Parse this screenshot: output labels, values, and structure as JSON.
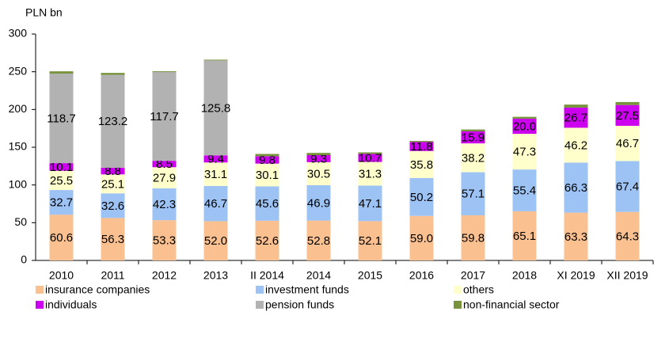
{
  "chart_data": {
    "type": "stacked_bar",
    "y_label": "PLN bn",
    "categories": [
      "2010",
      "2011",
      "2012",
      "2013",
      "II 2014",
      "2014",
      "2015",
      "2016",
      "2017",
      "2018",
      "XI 2019",
      "XII 2019"
    ],
    "ylim": [
      0,
      300
    ],
    "yticks": [
      0,
      50,
      100,
      150,
      200,
      250,
      300
    ],
    "grid": false,
    "legend": "bottom",
    "series": [
      {
        "name": "insurance companies",
        "color": "#fac090",
        "values": [
          60.6,
          56.3,
          53.3,
          52.0,
          52.6,
          52.8,
          52.1,
          59.0,
          59.8,
          65.1,
          63.3,
          64.3
        ],
        "value_labels": [
          "60.6",
          "56.3",
          "53.3",
          "52.0",
          "52.6",
          "52.8",
          "52.1",
          "59.0",
          "59.8",
          "65.1",
          "63.3",
          "64.3"
        ]
      },
      {
        "name": "investment funds",
        "color": "#9dc3f5",
        "values": [
          32.7,
          32.6,
          42.3,
          46.7,
          45.6,
          46.9,
          47.1,
          50.2,
          57.1,
          55.4,
          66.3,
          67.4
        ],
        "value_labels": [
          "32.7",
          "32.6",
          "42.3",
          "46.7",
          "45.6",
          "46.9",
          "47.1",
          "50.2",
          "57.1",
          "55.4",
          "66.3",
          "67.4"
        ]
      },
      {
        "name": "others",
        "color": "#ffffcc",
        "values": [
          25.5,
          25.1,
          27.9,
          31.1,
          30.1,
          30.5,
          31.3,
          35.8,
          38.2,
          47.3,
          46.2,
          46.7
        ],
        "value_labels": [
          "25.5",
          "25.1",
          "27.9",
          "31.1",
          "30.1",
          "30.5",
          "31.3",
          "35.8",
          "38.2",
          "47.3",
          "46.2",
          "46.7"
        ]
      },
      {
        "name": "individuals",
        "color": "#cc00ee",
        "values": [
          10.1,
          8.8,
          8.5,
          9.4,
          9.8,
          9.3,
          10.7,
          11.8,
          15.9,
          20.0,
          26.7,
          27.5
        ],
        "value_labels": [
          "10.1",
          "8.8",
          "8.5",
          "9.4",
          "9.8",
          "9.3",
          "10.7",
          "11.8",
          "15.9",
          "20.0",
          "26.7",
          "27.5"
        ]
      },
      {
        "name": "pension funds",
        "color": "#b2b2b2",
        "values": [
          118.7,
          123.2,
          117.7,
          125.8,
          null,
          null,
          null,
          null,
          null,
          null,
          null,
          null
        ],
        "value_labels": [
          "118.7",
          "123.2",
          "117.7",
          "125.8",
          null,
          null,
          null,
          null,
          null,
          null,
          null,
          null
        ]
      },
      {
        "name": "non-financial sector",
        "color": "#77933c",
        "values": [
          3,
          2.5,
          1,
          1,
          3,
          3,
          2,
          1.5,
          2.5,
          2.5,
          4,
          4
        ]
      }
    ]
  }
}
